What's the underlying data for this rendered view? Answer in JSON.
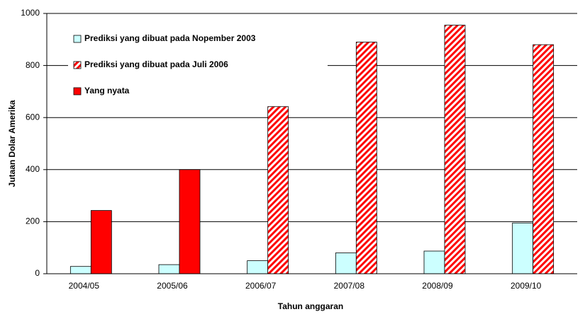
{
  "chart_data": {
    "type": "bar",
    "categories": [
      "2004/05",
      "2005/06",
      "2006/07",
      "2007/08",
      "2008/09",
      "2009/10"
    ],
    "series": [
      {
        "name": "Prediksi yang dibuat pada Nopember 2003",
        "color": "#ccffff",
        "values": [
          28,
          35,
          50,
          80,
          87,
          195
        ]
      },
      {
        "name": "Prediksi yang dibuat pada Juli 2006",
        "color": "#ff0000",
        "hatch": true,
        "values": [
          null,
          null,
          642,
          890,
          955,
          880
        ]
      },
      {
        "name": "Yang nyata",
        "color": "#ff0000",
        "values": [
          243,
          400,
          null,
          null,
          null,
          null
        ]
      }
    ],
    "ylabel": "Jutaan Dolar Amerika",
    "xlabel": "Tahun anggaran",
    "ylim": [
      0,
      1000
    ],
    "yticks": [
      0,
      200,
      400,
      600,
      800,
      1000
    ],
    "grid": true
  }
}
